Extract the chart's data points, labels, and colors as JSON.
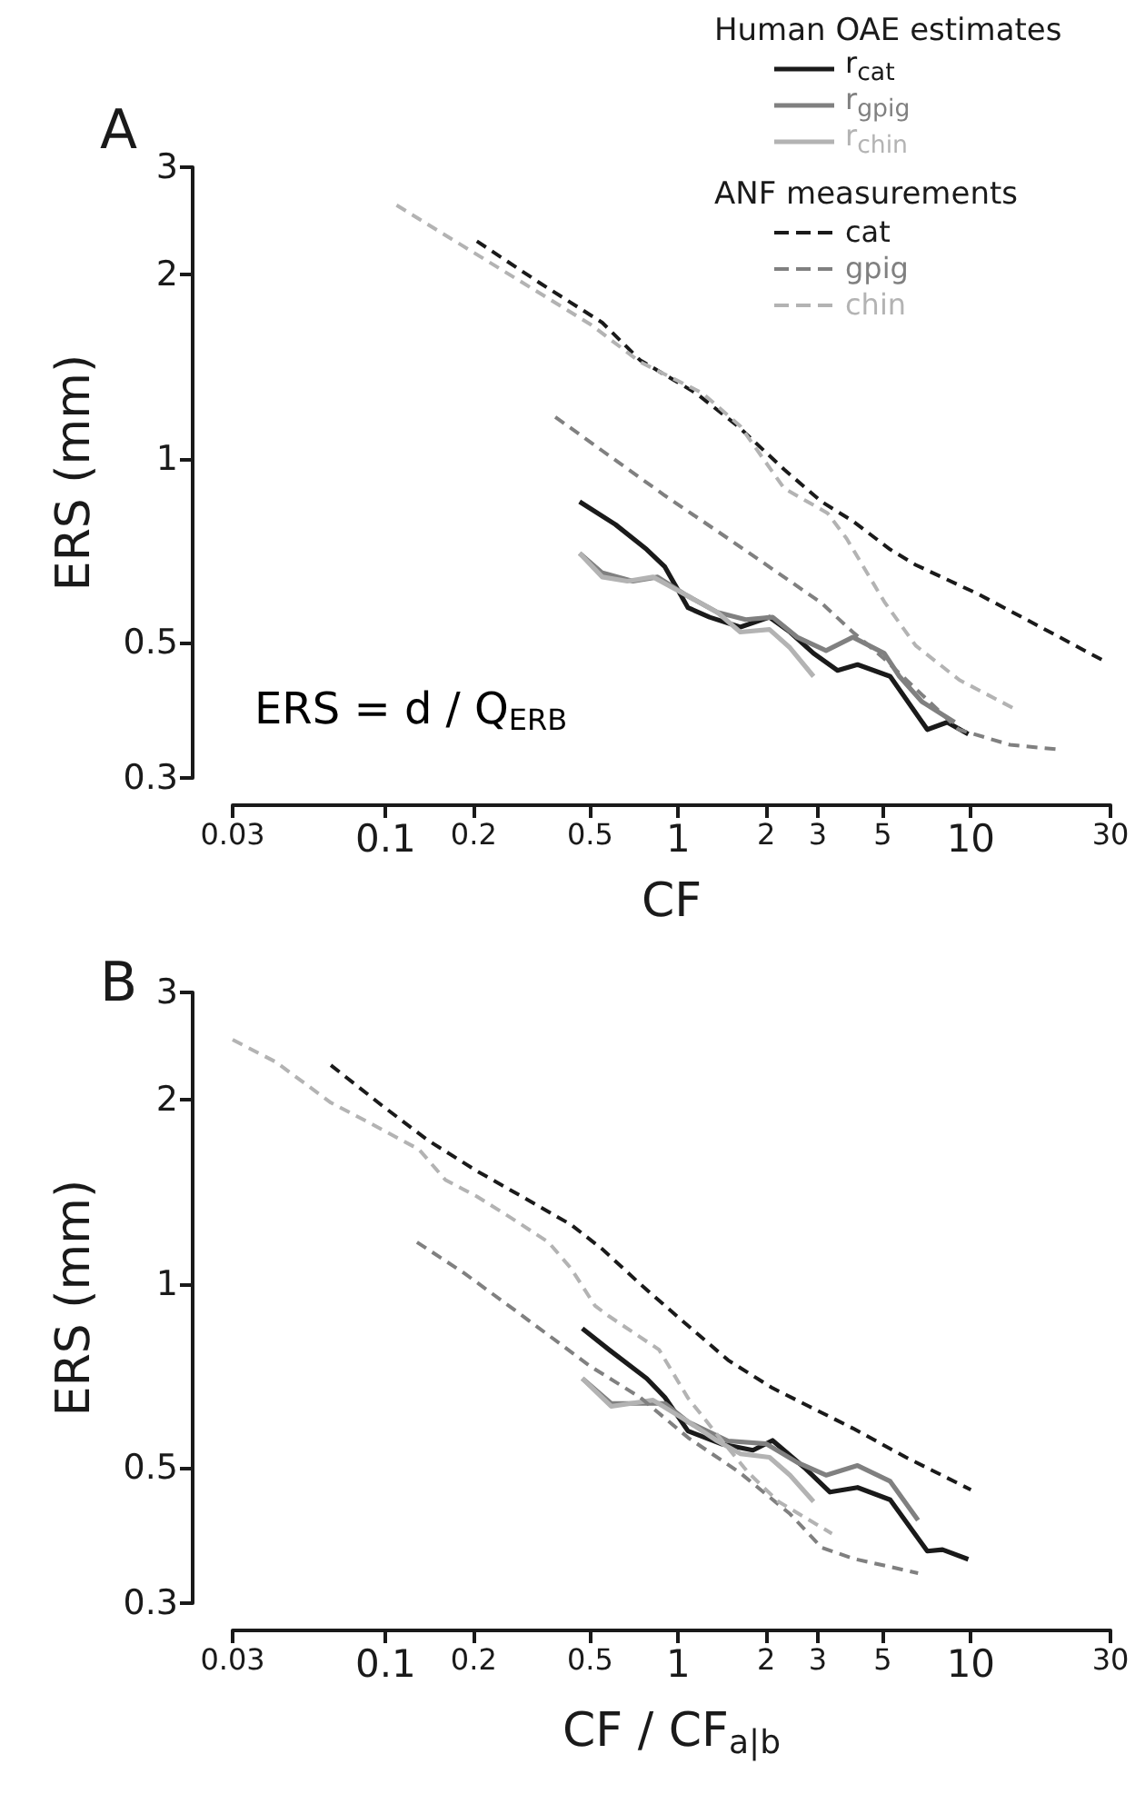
{
  "chart_data": [
    {
      "type": "line",
      "title": "A",
      "xlabel": "CF",
      "ylabel": "ERS (mm)",
      "log": "xy",
      "marker": "none",
      "legend": "top right",
      "legend_title": [
        "Human OAE estimates",
        "ANF measurements"
      ],
      "annotations": [
        "ERS = d / Q$_{ERB}$"
      ],
      "xlim": [
        0.03,
        30
      ],
      "ylim": [
        0.3,
        3
      ],
      "xticks": [
        0.03,
        0.1,
        0.2,
        0.5,
        1,
        2,
        3,
        5,
        10,
        30
      ],
      "yticks": [
        0.3,
        0.5,
        1,
        2,
        3
      ],
      "series": [
        {
          "name": "r$_{cat}$",
          "color": "#1a1a1a",
          "line_style": "solid",
          "x": [
            0.46,
            0.61,
            0.78,
            0.9,
            1.08,
            1.28,
            1.63,
            2.05,
            2.41,
            2.9,
            3.5,
            4.1,
            5.3,
            7.1,
            8.3,
            9.8
          ],
          "values": [
            0.85,
            0.78,
            0.71,
            0.665,
            0.57,
            0.55,
            0.53,
            0.55,
            0.52,
            0.48,
            0.45,
            0.46,
            0.44,
            0.36,
            0.37,
            0.354
          ]
        },
        {
          "name": "r$_{gpig}$",
          "color": "#808080",
          "line_style": "solid",
          "x": [
            0.46,
            0.55,
            0.7,
            0.85,
            1.05,
            1.36,
            1.7,
            2.1,
            2.55,
            3.2,
            3.95,
            5.06,
            5.7,
            6.8,
            8.8
          ],
          "values": [
            0.7,
            0.65,
            0.63,
            0.64,
            0.6,
            0.56,
            0.545,
            0.55,
            0.51,
            0.485,
            0.51,
            0.48,
            0.44,
            0.4,
            0.37
          ]
        },
        {
          "name": "r$_{chin}$",
          "color": "#b3b3b3",
          "line_style": "solid",
          "x": [
            0.46,
            0.55,
            0.67,
            0.82,
            1.05,
            1.36,
            1.63,
            2.05,
            2.41,
            2.9
          ],
          "values": [
            0.7,
            0.64,
            0.63,
            0.64,
            0.6,
            0.56,
            0.52,
            0.525,
            0.49,
            0.44
          ]
        },
        {
          "name": "cat",
          "color": "#1a1a1a",
          "line_style": "dashed",
          "x": [
            0.205,
            0.336,
            0.55,
            0.74,
            1.15,
            1.6,
            2.3,
            3.09,
            3.95,
            5.3,
            6.47,
            10.6,
            17.3,
            28.6
          ],
          "values": [
            2.27,
            1.94,
            1.67,
            1.45,
            1.28,
            1.13,
            0.96,
            0.85,
            0.79,
            0.71,
            0.67,
            0.6,
            0.53,
            0.466
          ]
        },
        {
          "name": "gpig",
          "color": "#808080",
          "line_style": "dashed",
          "x": [
            0.38,
            0.55,
            0.9,
            1.48,
            2.41,
            3.09,
            3.95,
            5.06,
            6.47,
            9.1,
            13.6,
            20
          ],
          "values": [
            1.17,
            1.03,
            0.87,
            0.74,
            0.63,
            0.58,
            0.52,
            0.47,
            0.42,
            0.36,
            0.34,
            0.334
          ]
        },
        {
          "name": "chin",
          "color": "#b3b3b3",
          "line_style": "dashed",
          "x": [
            0.109,
            0.5,
            0.74,
            1.21,
            1.63,
            2.3,
            3.24,
            3.76,
            5.06,
            6.48,
            9.14,
            14.3
          ],
          "values": [
            2.6,
            1.66,
            1.44,
            1.28,
            1.13,
            0.894,
            0.814,
            0.74,
            0.583,
            0.494,
            0.434,
            0.388
          ]
        }
      ]
    },
    {
      "type": "line",
      "title": "B",
      "xlabel": "CF / CF$_{a|b}$",
      "ylabel": "ERS (mm)",
      "log": "xy",
      "marker": "none",
      "xlim": [
        0.03,
        30
      ],
      "ylim": [
        0.3,
        3
      ],
      "xticks": [
        0.03,
        0.1,
        0.2,
        0.5,
        1,
        2,
        3,
        5,
        10,
        30
      ],
      "yticks": [
        0.3,
        0.5,
        1,
        2,
        3
      ],
      "series": [
        {
          "color": "#1a1a1a",
          "line_style": "solid",
          "x": [
            0.47,
            0.58,
            0.78,
            0.9,
            1.08,
            1.4,
            1.8,
            2.1,
            2.7,
            3.3,
            4.1,
            5.3,
            7.1,
            8,
            9.8
          ],
          "values": [
            0.845,
            0.78,
            0.7,
            0.652,
            0.574,
            0.547,
            0.534,
            0.554,
            0.5,
            0.456,
            0.464,
            0.443,
            0.365,
            0.367,
            0.354
          ]
        },
        {
          "color": "#808080",
          "line_style": "solid",
          "x": [
            0.47,
            0.59,
            0.74,
            0.9,
            1.08,
            1.48,
            2,
            2.55,
            3.2,
            4.1,
            5.3,
            6.6
          ],
          "values": [
            0.7,
            0.637,
            0.637,
            0.637,
            0.594,
            0.553,
            0.547,
            0.51,
            0.486,
            0.504,
            0.475,
            0.41
          ]
        },
        {
          "color": "#b3b3b3",
          "line_style": "solid",
          "x": [
            0.47,
            0.59,
            0.82,
            1.05,
            1.36,
            1.63,
            2.05,
            2.41,
            2.9
          ],
          "values": [
            0.7,
            0.63,
            0.645,
            0.6,
            0.553,
            0.527,
            0.52,
            0.486,
            0.44
          ]
        },
        {
          "color": "#1a1a1a",
          "line_style": "dashed",
          "x": [
            0.065,
            0.097,
            0.139,
            0.205,
            0.3,
            0.43,
            0.55,
            0.74,
            0.99,
            1.48,
            2.1,
            2.8,
            3.95,
            6,
            10
          ],
          "values": [
            2.28,
            1.96,
            1.72,
            1.53,
            1.38,
            1.25,
            1.14,
            1.0,
            0.885,
            0.75,
            0.675,
            0.63,
            0.58,
            0.52,
            0.46
          ]
        },
        {
          "color": "#808080",
          "line_style": "dashed",
          "x": [
            0.128,
            0.186,
            0.276,
            0.5,
            0.74,
            1.08,
            1.63,
            2.41,
            3.09,
            3.95,
            6.6
          ],
          "values": [
            1.17,
            1.04,
            0.906,
            0.733,
            0.652,
            0.56,
            0.49,
            0.42,
            0.37,
            0.355,
            0.336
          ]
        },
        {
          "color": "#b3b3b3",
          "line_style": "dashed",
          "x": [
            0.03,
            0.042,
            0.065,
            0.089,
            0.13,
            0.16,
            0.205,
            0.27,
            0.36,
            0.43,
            0.52,
            0.58,
            0.86,
            1.08,
            1.36,
            1.74,
            2.2,
            3.35
          ],
          "values": [
            2.51,
            2.31,
            1.98,
            1.83,
            1.66,
            1.48,
            1.39,
            1.28,
            1.17,
            1.06,
            0.92,
            0.885,
            0.78,
            0.65,
            0.566,
            0.49,
            0.44,
            0.39
          ]
        }
      ]
    }
  ]
}
